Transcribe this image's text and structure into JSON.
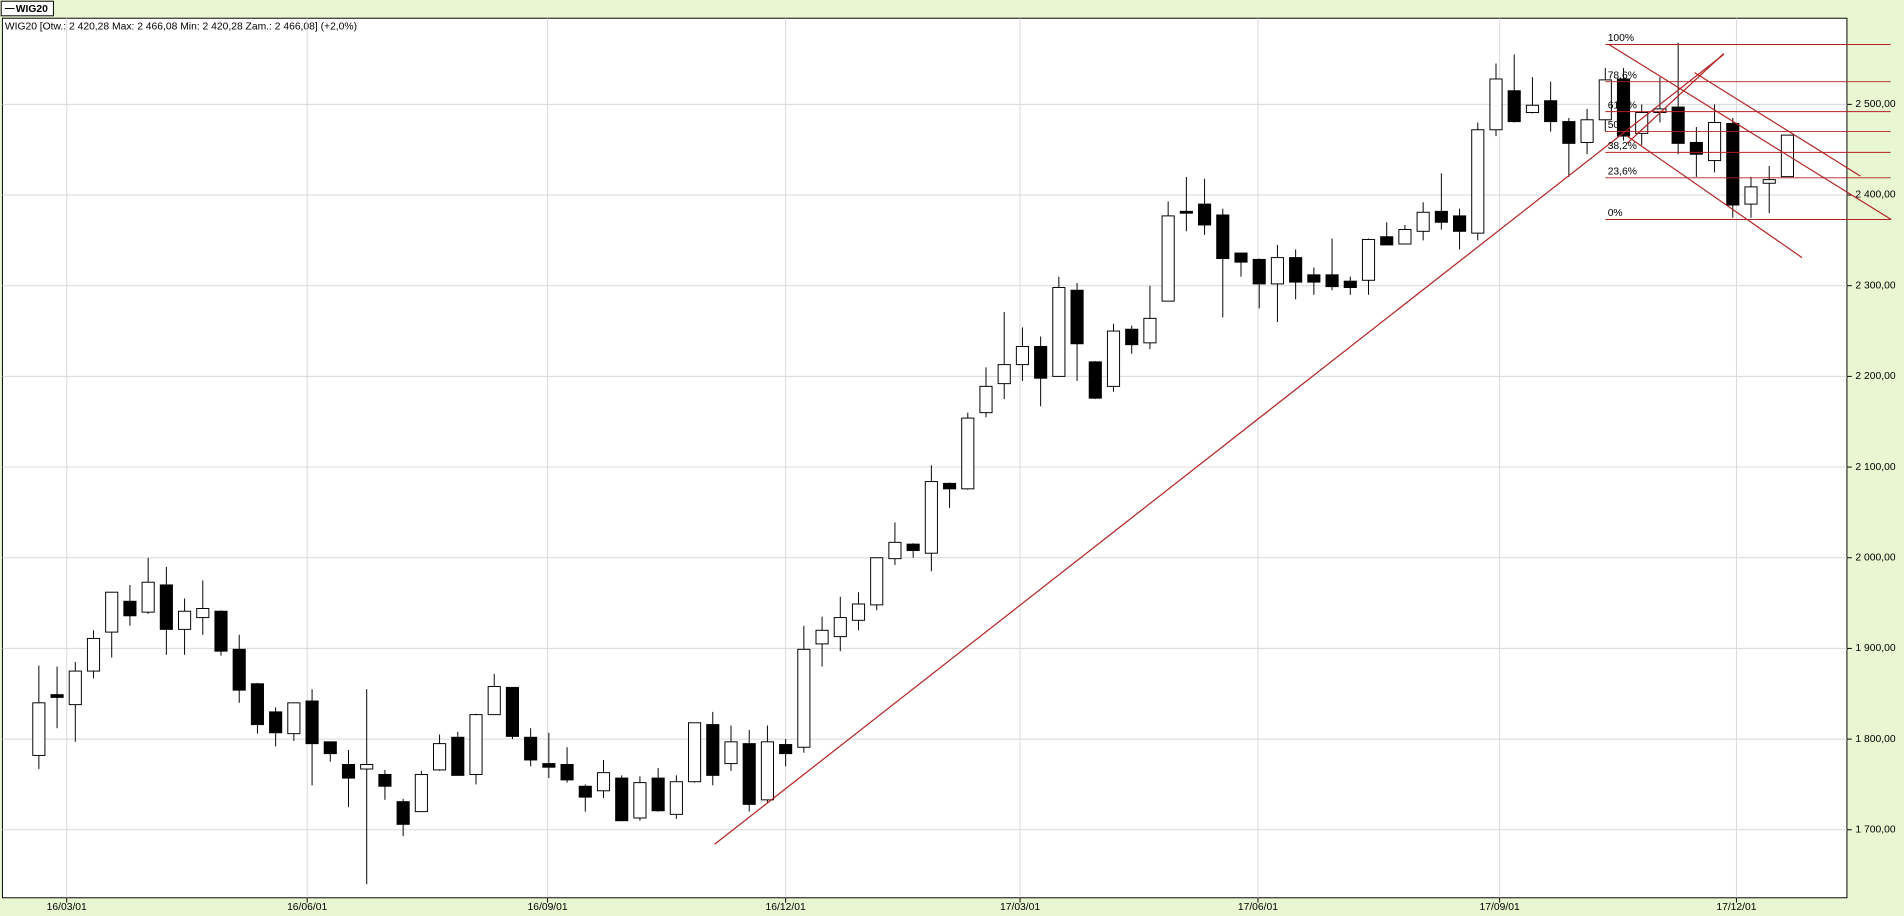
{
  "chart_data": {
    "type": "candlestick",
    "header": "WIG20 [Otw.: 2 420,28  Max: 2 466,08  Min: 2 420,28  Zam.: 2 466,08] (+2,0%)",
    "categories": [
      null,
      null,
      null,
      null,
      null,
      null,
      null,
      null,
      null,
      null,
      null,
      null,
      null,
      null,
      null,
      null,
      null,
      null,
      null,
      null,
      null,
      null,
      null,
      null,
      null,
      null,
      null,
      null,
      null,
      null,
      null,
      null,
      null,
      null,
      null,
      null,
      null,
      null,
      null,
      null,
      null,
      null,
      null,
      null,
      null,
      null,
      null,
      null,
      null,
      null,
      null,
      null,
      null,
      null,
      null,
      null,
      null,
      null,
      null,
      null,
      null,
      null,
      null,
      null,
      null,
      null,
      null,
      null,
      null,
      null,
      null,
      null,
      null,
      null,
      null,
      null,
      null,
      null,
      null,
      null,
      null,
      null,
      null,
      null,
      null,
      null,
      null,
      null,
      null,
      null,
      null,
      null,
      null,
      null,
      null,
      null,
      null
    ],
    "series": [
      {
        "name": "WIG20",
        "up_color": "#ffffff",
        "down_color": "#000000",
        "open": [
          1782,
          1849,
          1838,
          1875,
          1918,
          1952,
          1940,
          1970,
          1921,
          1934,
          1941,
          1899,
          1861,
          1830,
          1806,
          1842,
          1797,
          1772,
          1767,
          1761,
          1731,
          1720,
          1766,
          1802,
          1761,
          1827,
          1857,
          1802,
          1773,
          1772,
          1748,
          1743,
          1757,
          1713,
          1757,
          1717,
          1753,
          1816,
          1773,
          1795,
          1733,
          1794,
          1791,
          1905,
          1913,
          1931,
          1948,
          1999,
          2015,
          2005,
          2082,
          2076,
          2160,
          2192,
          2213,
          2233,
          2200,
          2295,
          2216,
          2189,
          2252,
          2237,
          2283,
          2382,
          2390,
          2378,
          2336,
          2329,
          2302,
          2331,
          2312,
          2312,
          2305,
          2306,
          2354,
          2346,
          2360,
          2382,
          2377,
          2358,
          2472,
          2515,
          2491,
          2504,
          2481,
          2458,
          2483,
          2528,
          2468,
          2491,
          2497,
          2458,
          2438,
          2479,
          2390,
          2413,
          2420.28
        ],
        "high": [
          1881,
          1880,
          1885,
          1920,
          1962,
          1970,
          2000,
          1990,
          1955,
          1975,
          1942,
          1915,
          1862,
          1835,
          1840,
          1855,
          1797,
          1788,
          1855,
          1766,
          1734,
          1765,
          1805,
          1808,
          1828,
          1872,
          1857,
          1812,
          1807,
          1791,
          1750,
          1777,
          1760,
          1759,
          1768,
          1760,
          1818,
          1830,
          1815,
          1810,
          1815,
          1800,
          1925,
          1935,
          1957,
          1962,
          2000,
          2039,
          2016,
          2102,
          2083,
          2160,
          2210,
          2271,
          2254,
          2244,
          2310,
          2303,
          2217,
          2258,
          2256,
          2300,
          2393,
          2420,
          2418,
          2385,
          2335,
          2330,
          2345,
          2340,
          2320,
          2352,
          2310,
          2352,
          2370,
          2367,
          2392,
          2424,
          2385,
          2480,
          2545,
          2555,
          2530,
          2525,
          2485,
          2495,
          2540,
          2540,
          2500,
          2530,
          2568,
          2475,
          2500,
          2485,
          2420,
          2432,
          2466.08
        ],
        "low": [
          1767,
          1812,
          1797,
          1867,
          1890,
          1925,
          1938,
          1893,
          1893,
          1915,
          1892,
          1840,
          1806,
          1792,
          1798,
          1749,
          1775,
          1725,
          1640,
          1733,
          1693,
          1720,
          1765,
          1760,
          1750,
          1827,
          1800,
          1770,
          1757,
          1752,
          1720,
          1735,
          1710,
          1710,
          1720,
          1712,
          1752,
          1749,
          1765,
          1720,
          1730,
          1770,
          1785,
          1880,
          1897,
          1920,
          1942,
          1992,
          2000,
          1985,
          2055,
          2075,
          2155,
          2175,
          2195,
          2167,
          2200,
          2195,
          2175,
          2183,
          2225,
          2230,
          2283,
          2360,
          2356,
          2265,
          2310,
          2275,
          2260,
          2285,
          2290,
          2295,
          2290,
          2290,
          2345,
          2346,
          2350,
          2362,
          2340,
          2350,
          2465,
          2480,
          2490,
          2470,
          2420,
          2445,
          2470,
          2460,
          2455,
          2480,
          2445,
          2420,
          2425,
          2375,
          2375,
          2380,
          2420.28
        ],
        "close": [
          1840,
          1846,
          1875,
          1911,
          1962,
          1936,
          1973,
          1921,
          1941,
          1944,
          1897,
          1854,
          1816,
          1807,
          1840,
          1795,
          1784,
          1757,
          1772,
          1748,
          1706,
          1761,
          1795,
          1760,
          1827,
          1858,
          1803,
          1777,
          1769,
          1755,
          1736,
          1763,
          1710,
          1752,
          1721,
          1753,
          1818,
          1760,
          1797,
          1728,
          1797,
          1784,
          1899,
          1920,
          1934,
          1949,
          2000,
          2017,
          2008,
          2084,
          2076,
          2154,
          2189,
          2213,
          2233,
          2198,
          2298,
          2236,
          2176,
          2250,
          2235,
          2264,
          2377,
          2380,
          2367,
          2330,
          2326,
          2302,
          2331,
          2304,
          2304,
          2299,
          2298,
          2351,
          2345,
          2362,
          2381,
          2370,
          2360,
          2472,
          2528,
          2481,
          2499,
          2481,
          2457,
          2483,
          2527,
          2465,
          2491,
          2495,
          2457,
          2445,
          2480,
          2389,
          2409,
          2417,
          2466.08
        ]
      }
    ],
    "ylim": [
      1625,
      2595
    ],
    "yticks": [
      {
        "value": 1700,
        "label": "1 700,00"
      },
      {
        "value": 1800,
        "label": "1 800,00"
      },
      {
        "value": 1900,
        "label": "1 900,00"
      },
      {
        "value": 2000,
        "label": "2 000,00"
      },
      {
        "value": 2100,
        "label": "2 100,00"
      },
      {
        "value": 2200,
        "label": "2 200,00"
      },
      {
        "value": 2300,
        "label": "2 300,00"
      },
      {
        "value": 2400,
        "label": "2 400,00"
      },
      {
        "value": 2500,
        "label": "2 500,00"
      }
    ],
    "xticks": [
      {
        "value": 1.53,
        "label": "16/03/01"
      },
      {
        "value": 14.73,
        "label": "16/06/01"
      },
      {
        "value": 27.93,
        "label": "16/09/01"
      },
      {
        "value": 41.0,
        "label": "16/12/01"
      },
      {
        "value": 53.87,
        "label": "17/03/01"
      },
      {
        "value": 66.93,
        "label": "17/06/01"
      },
      {
        "value": 80.2,
        "label": "17/09/01"
      },
      {
        "value": 93.2,
        "label": "17/12/01"
      }
    ],
    "grid": true,
    "annotation_color": "#b22222",
    "trendlines": [
      {
        "x": [
          37.1,
          92.5
        ],
        "y": [
          1684,
          2555
        ]
      },
      {
        "x": [
          86.2,
          101.7
        ],
        "y": [
          2566,
          2373
        ]
      },
      {
        "x": [
          87.2,
          96.8
        ],
        "y": [
          2465,
          2331
        ]
      },
      {
        "x": [
          90.9,
          100
        ],
        "y": [
          2535,
          2421
        ]
      },
      {
        "x": [
          87.2,
          92.5
        ],
        "y": [
          2457,
          2556
        ]
      }
    ],
    "fibonacci": [
      {
        "value": 2566,
        "label": "100%"
      },
      {
        "value": 2525,
        "label": "78,6%"
      },
      {
        "value": 2492,
        "label": "61,8%"
      },
      {
        "value": 2470,
        "label": "50%"
      },
      {
        "value": 2447,
        "label": "38,2%"
      },
      {
        "value": 2419,
        "label": "23,6%"
      },
      {
        "value": 2373,
        "label": "0%"
      }
    ]
  }
}
